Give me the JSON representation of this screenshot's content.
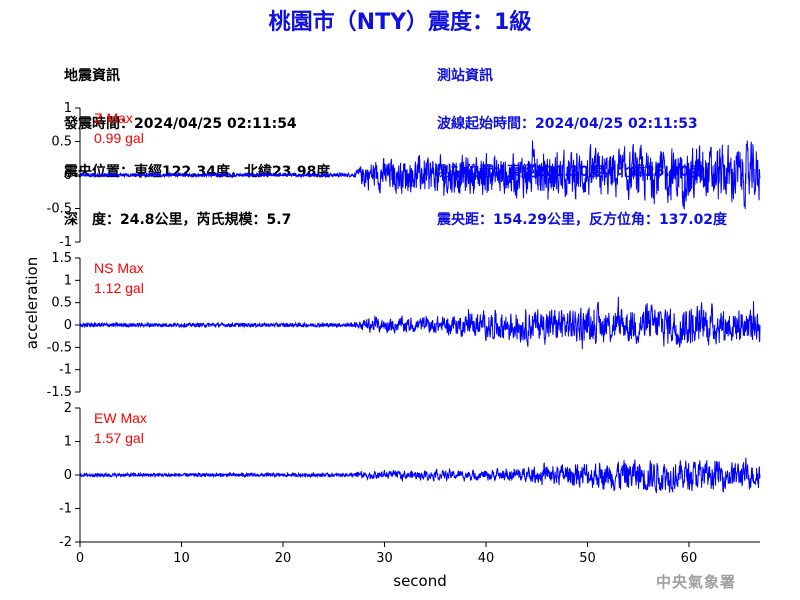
{
  "title": "桃園市（NTY）震度：1級",
  "quake_info": {
    "heading": "地震資訊",
    "time": "發震時間：2024/04/25 02:11:54",
    "location": "震央位置：東經122.34度，北緯23.98度",
    "depth": "深　度：24.8公里，芮氏規模：5.7"
  },
  "station_info": {
    "heading": "測站資訊",
    "wave_start": "波線起始時間：2024/04/25 02:11:53",
    "location": "測站位置：東經121.30度，北緯25.00度",
    "distance": "震央距：154.29公里，反方位角：137.02度"
  },
  "agency": "中央氣象署",
  "colors": {
    "trace": "#0000ff",
    "label": "#ff0000",
    "title": "#1010e0",
    "agency": "#a0a0a0"
  },
  "chart_data": [
    {
      "type": "line",
      "component": "Z",
      "label_name": "Z Max",
      "label_value": "0.99 gal",
      "max_abs": 0.99,
      "ylim": [
        -1,
        1
      ],
      "yticks": [
        -1,
        -0.5,
        0,
        0.5,
        1
      ],
      "ytick_labels": [
        "-1",
        "-0.5",
        "0",
        "0.5",
        "1"
      ],
      "noise_amp": 0.03,
      "envelope": [
        [
          0,
          0.03
        ],
        [
          27,
          0.03
        ],
        [
          28,
          0.35
        ],
        [
          35,
          0.45
        ],
        [
          40,
          0.5
        ],
        [
          50,
          0.55
        ],
        [
          60,
          0.65
        ],
        [
          67,
          0.7
        ]
      ]
    },
    {
      "type": "line",
      "component": "NS",
      "label_name": "NS Max",
      "label_value": "1.12 gal",
      "max_abs": 1.12,
      "ylim": [
        -1.5,
        1.5
      ],
      "yticks": [
        -1.5,
        -1,
        -0.5,
        0,
        0.5,
        1,
        1.5
      ],
      "ytick_labels": [
        "-1.5",
        "-1",
        "-0.5",
        "0",
        "0.5",
        "1",
        "1.5"
      ],
      "noise_amp": 0.05,
      "envelope": [
        [
          0,
          0.05
        ],
        [
          27,
          0.05
        ],
        [
          28,
          0.25
        ],
        [
          35,
          0.3
        ],
        [
          40,
          0.45
        ],
        [
          42,
          0.6
        ],
        [
          50,
          0.6
        ],
        [
          60,
          0.75
        ],
        [
          67,
          0.6
        ]
      ]
    },
    {
      "type": "line",
      "component": "EW",
      "label_name": "EW Max",
      "label_value": "1.57 gal",
      "max_abs": 1.57,
      "ylim": [
        -2,
        2
      ],
      "yticks": [
        -2,
        -1,
        0,
        1,
        2
      ],
      "ytick_labels": [
        "-2",
        "-1",
        "0",
        "1",
        "2"
      ],
      "noise_amp": 0.06,
      "envelope": [
        [
          0,
          0.06
        ],
        [
          27,
          0.06
        ],
        [
          28,
          0.2
        ],
        [
          40,
          0.25
        ],
        [
          45,
          0.4
        ],
        [
          50,
          0.6
        ],
        [
          55,
          0.8
        ],
        [
          60,
          0.7
        ],
        [
          67,
          0.6
        ]
      ]
    }
  ],
  "x_axis": {
    "xlabel": "second",
    "xlim": [
      0,
      67
    ],
    "xticks": [
      0,
      10,
      20,
      30,
      40,
      50,
      60
    ],
    "xtick_labels": [
      "0",
      "10",
      "20",
      "30",
      "40",
      "50",
      "60"
    ]
  },
  "ylabel": "acceleration"
}
